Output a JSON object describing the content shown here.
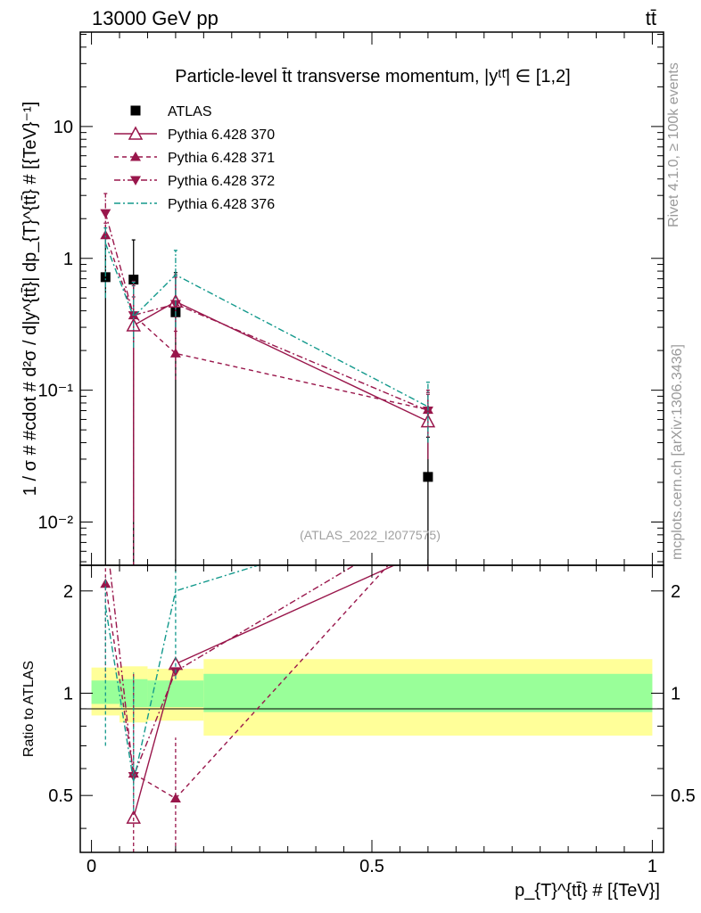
{
  "header": {
    "energy_label": "13000 GeV pp",
    "process_label": "tt̄"
  },
  "side_labels": {
    "rivet": "Rivet 4.1.0, ≥ 100k events",
    "mcplots": "mcplots.cern.ch [arXiv:1306.3436]"
  },
  "colors": {
    "data": "#000000",
    "mc": "#99164b",
    "mc376": "#13998c",
    "band_outer": "#ffff99",
    "band_inner": "#99ff99"
  },
  "chart_data": [
    {
      "type": "scatter",
      "panel": "main",
      "title": "Particle-level t̄t transverse momentum, |yᵗᵗ̄| ∈ [1,2]",
      "analysis_label": "(ATLAS_2022_I2077575)",
      "xlabel": "p_{T}^{tt̄} # [{TeV}]",
      "ylabel": "1 / σ # #cdot # d²σ / d|y^{tt̄}| dp_{T}^{tt̄} # [{TeV}⁻¹]",
      "yscale": "log",
      "xlim": [
        -0.02,
        1.02
      ],
      "ylim": [
        0.0047,
        52
      ],
      "y_ticks": [
        {
          "value": 0.01,
          "label": "10⁻²"
        },
        {
          "value": 0.1,
          "label": "10⁻¹"
        },
        {
          "value": 1,
          "label": "1"
        },
        {
          "value": 10,
          "label": "10"
        }
      ],
      "legend_position": "top-left",
      "series": [
        {
          "name": "ATLAS",
          "marker": "square",
          "style": "none",
          "x": [
            0.025,
            0.075,
            0.15,
            0.6
          ],
          "y": [
            0.72,
            0.69,
            0.39,
            0.022
          ],
          "err_lo": [
            0.72,
            0.69,
            0.39,
            0.022
          ],
          "err_hi": [
            0.72,
            0.69,
            0.39,
            0.022
          ]
        },
        {
          "name": "Pythia 6.428 370",
          "marker": "triangle-up-open",
          "style": "solid",
          "x": [
            0.075,
            0.15,
            0.6
          ],
          "y": [
            0.31,
            0.47,
            0.058
          ],
          "err_lo": [
            0.3,
            0.2,
            0.028
          ],
          "err_hi": [
            0.2,
            0.25,
            0.035
          ]
        },
        {
          "name": "Pythia 6.428 371",
          "marker": "triangle-up",
          "style": "dashed",
          "x": [
            0.025,
            0.075,
            0.15,
            0.6
          ],
          "y": [
            1.5,
            0.37,
            0.19,
            0.071
          ],
          "err_lo": [
            0.3,
            0.37,
            0.07,
            0.02
          ],
          "err_hi": [
            0.35,
            0.25,
            0.09,
            0.025
          ]
        },
        {
          "name": "Pythia 6.428 372",
          "marker": "triangle-down",
          "style": "dashdot",
          "x": [
            0.025,
            0.075,
            0.15,
            0.6
          ],
          "y": [
            2.2,
            0.37,
            0.45,
            0.07
          ],
          "err_lo": [
            0.55,
            0.2,
            0.2,
            0.025
          ],
          "err_hi": [
            0.9,
            0.3,
            0.3,
            0.03
          ]
        },
        {
          "name": "Pythia 6.428 376",
          "marker": "none",
          "style": "dashdot",
          "x": [
            0.025,
            0.075,
            0.15,
            0.6
          ],
          "y": [
            1.3,
            0.36,
            0.75,
            0.075
          ],
          "err_lo": [
            0.8,
            0.15,
            0.45,
            0.035
          ],
          "err_hi": [
            0.4,
            0.3,
            0.4,
            0.04
          ]
        }
      ]
    },
    {
      "type": "line",
      "panel": "ratio",
      "ylabel": "Ratio to ATLAS",
      "xlim": [
        -0.02,
        1.02
      ],
      "ylim": [
        0.34,
        2.38
      ],
      "yscale": "log",
      "x_ticks": [
        {
          "value": 0,
          "label": "0"
        },
        {
          "value": 0.5,
          "label": "0.5"
        },
        {
          "value": 1,
          "label": "1"
        }
      ],
      "y_ticks": [
        {
          "value": 0.5,
          "label": "0.5"
        },
        {
          "value": 1,
          "label": "1"
        },
        {
          "value": 2,
          "label": "2"
        }
      ],
      "bands": {
        "edges": [
          0,
          0.05,
          0.1,
          0.2,
          1.0
        ],
        "outer_lo": [
          0.86,
          0.82,
          0.83,
          0.75
        ],
        "outer_hi": [
          1.19,
          1.2,
          1.18,
          1.26
        ],
        "inner_lo": [
          0.93,
          0.91,
          0.91,
          0.88
        ],
        "inner_hi": [
          1.09,
          1.1,
          1.09,
          1.14
        ]
      },
      "series": [
        {
          "name": "Pythia 6.428 370",
          "marker": "triangle-up-open",
          "style": "solid",
          "x": [
            0.075,
            0.15,
            0.6
          ],
          "y": [
            0.43,
            1.22,
            2.64
          ]
        },
        {
          "name": "Pythia 6.428 371",
          "marker": "triangle-up",
          "style": "dashed",
          "x": [
            0.025,
            0.075,
            0.15,
            0.6
          ],
          "y": [
            2.1,
            0.58,
            0.49,
            3.2
          ],
          "err_lo": [
            0.99,
            0.56,
            0.2,
            0.9
          ],
          "err_hi": [
            1.0,
            0.56,
            0.25,
            1.0
          ]
        },
        {
          "name": "Pythia 6.428 372",
          "marker": "triangle-down",
          "style": "dashdot",
          "x": [
            0.025,
            0.075,
            0.15,
            0.6
          ],
          "y": [
            3.05,
            0.57,
            1.16,
            3.2
          ]
        },
        {
          "name": "Pythia 6.428 376",
          "marker": "none",
          "style": "dashdot",
          "x": [
            0.025,
            0.075,
            0.15,
            0.6
          ],
          "y": [
            1.8,
            0.55,
            2.0,
            3.4
          ],
          "err_lo": [
            1.1,
            0.1,
            0.9,
            1.0
          ],
          "err_hi": [
            0.4,
            0.6,
            0.4,
            1.0
          ]
        }
      ]
    }
  ]
}
